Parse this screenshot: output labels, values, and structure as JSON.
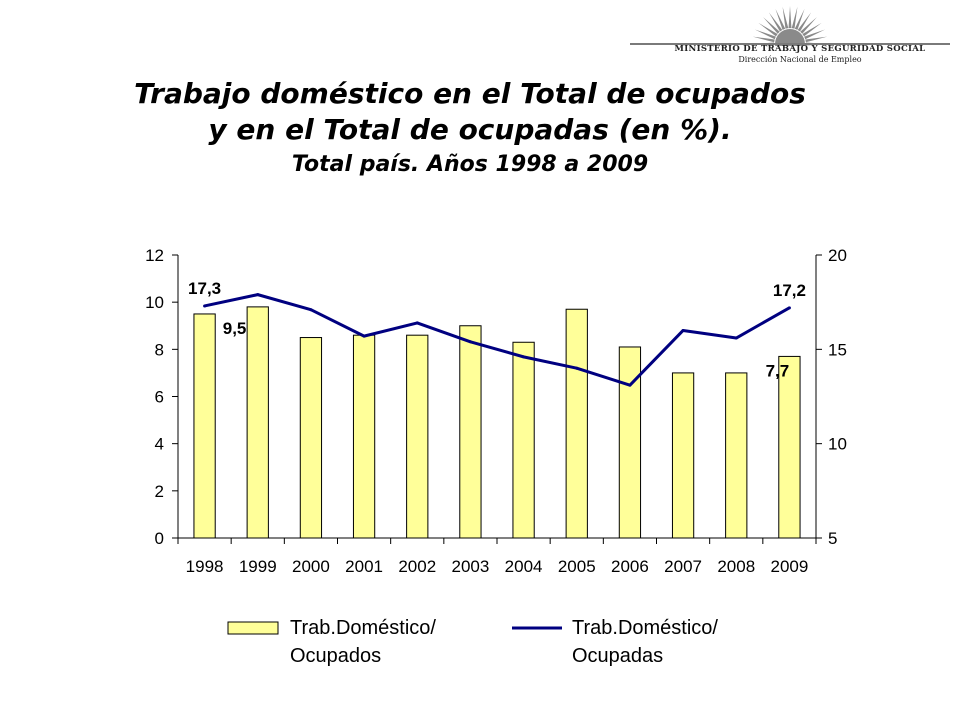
{
  "header": {
    "title_line1": "Trabajo doméstico en el Total de ocupados",
    "title_line2": "y en el Total de ocupadas (en %).",
    "subtitle": "Total país. Años 1998 a 2009"
  },
  "logo": {
    "line1": "MINISTERIO DE TRABAJO Y SEGURIDAD SOCIAL",
    "line2": "Dirección Nacional de Empleo",
    "colors": {
      "sun": "#8a8a8a",
      "stripe": "#7a7a7a"
    }
  },
  "chart_data": {
    "type": "bar",
    "categories": [
      "1998",
      "1999",
      "2000",
      "2001",
      "2002",
      "2003",
      "2004",
      "2005",
      "2006",
      "2007",
      "2008",
      "2009"
    ],
    "series": [
      {
        "name_line1": "Trab.Doméstico/",
        "name_line2": "Ocupados",
        "type": "bar",
        "axis": "left",
        "color": "#ffff99",
        "edge": "#000000",
        "values": [
          9.5,
          9.8,
          8.5,
          8.6,
          8.6,
          9.0,
          8.3,
          9.7,
          8.1,
          7.0,
          7.0,
          7.7
        ]
      },
      {
        "name_line1": "Trab.Doméstico/",
        "name_line2": "Ocupadas",
        "type": "line",
        "axis": "right",
        "color": "#000080",
        "values": [
          17.3,
          17.9,
          17.1,
          15.7,
          16.4,
          15.4,
          14.6,
          14.0,
          13.1,
          16.0,
          15.6,
          17.2
        ]
      }
    ],
    "left_axis": {
      "min": 0,
      "max": 12,
      "ticks": [
        "0",
        "2",
        "4",
        "6",
        "8",
        "10",
        "12"
      ]
    },
    "right_axis": {
      "min": 5,
      "max": 20,
      "ticks": [
        "5",
        "10",
        "15",
        "20"
      ]
    },
    "data_labels": [
      {
        "series": 1,
        "index": 0,
        "text": "17,3"
      },
      {
        "series": 0,
        "index": 0,
        "text": "9,5"
      },
      {
        "series": 1,
        "index": 11,
        "text": "17,2"
      },
      {
        "series": 0,
        "index": 11,
        "text": "7,7"
      }
    ],
    "grid": false,
    "legend_position": "bottom"
  }
}
